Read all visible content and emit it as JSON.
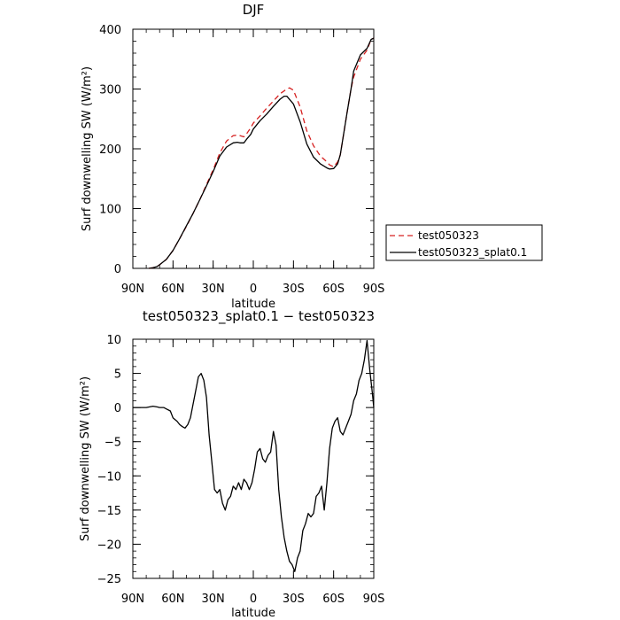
{
  "chart_data": [
    {
      "type": "line",
      "title": "DJF",
      "xlabel": "latitude",
      "ylabel": "Surf downwelling SW (W/m²)",
      "xlim": [
        90,
        -90
      ],
      "ylim": [
        0,
        400
      ],
      "x_ticks": [
        90,
        60,
        30,
        0,
        -30,
        -60,
        -90
      ],
      "x_tick_labels": [
        "90N",
        "60N",
        "30N",
        "0",
        "30S",
        "60S",
        "90S"
      ],
      "y_ticks": [
        0,
        100,
        200,
        300,
        400
      ],
      "y_tick_labels": [
        "0",
        "100",
        "200",
        "300",
        "400"
      ],
      "grid": false,
      "legend_position": "right-middle",
      "series": [
        {
          "name": "test050323",
          "color": "#d62020",
          "dash": "dashed",
          "x": [
            78,
            75,
            72,
            70,
            65,
            60,
            55,
            50,
            45,
            40,
            35,
            30,
            25,
            20,
            15,
            12,
            10,
            7,
            5,
            2,
            0,
            -5,
            -10,
            -15,
            -20,
            -25,
            -27,
            -30,
            -35,
            -40,
            -45,
            -50,
            -55,
            -57,
            -60,
            -63,
            -65,
            -70,
            -73,
            -75,
            -80,
            -85,
            -88,
            -90
          ],
          "y": [
            0,
            1,
            3,
            6,
            15,
            30,
            50,
            70,
            92,
            115,
            140,
            165,
            193,
            213,
            222,
            223,
            222,
            220,
            225,
            235,
            243,
            255,
            268,
            280,
            292,
            300,
            302,
            298,
            270,
            230,
            205,
            188,
            178,
            173,
            170,
            178,
            190,
            260,
            300,
            320,
            350,
            365,
            383,
            385
          ]
        },
        {
          "name": "test050323_splat0.1",
          "color": "#000000",
          "dash": "solid",
          "x": [
            78,
            75,
            72,
            70,
            65,
            60,
            55,
            50,
            45,
            40,
            35,
            30,
            25,
            20,
            15,
            12,
            10,
            7,
            5,
            2,
            0,
            -5,
            -10,
            -15,
            -20,
            -23,
            -25,
            -30,
            -35,
            -40,
            -45,
            -50,
            -55,
            -57,
            -60,
            -63,
            -65,
            -70,
            -73,
            -75,
            -80,
            -85,
            -88,
            -90
          ],
          "y": [
            0,
            1,
            3,
            6,
            15,
            30,
            50,
            71,
            92,
            115,
            138,
            162,
            188,
            203,
            210,
            211,
            210,
            210,
            216,
            224,
            233,
            247,
            258,
            271,
            283,
            288,
            288,
            275,
            245,
            208,
            186,
            175,
            168,
            166,
            167,
            175,
            190,
            260,
            300,
            330,
            357,
            368,
            383,
            385
          ]
        }
      ]
    },
    {
      "type": "line",
      "title": "test050323_splat0.1 − test050323",
      "xlabel": "latitude",
      "ylabel": "Surf downwelling SW (W/m²)",
      "xlim": [
        90,
        -90
      ],
      "ylim": [
        -25,
        10
      ],
      "x_ticks": [
        90,
        60,
        30,
        0,
        -30,
        -60,
        -90
      ],
      "x_tick_labels": [
        "90N",
        "60N",
        "30N",
        "0",
        "30S",
        "60S",
        "90S"
      ],
      "y_ticks": [
        -25,
        -20,
        -15,
        -10,
        -5,
        0,
        5,
        10
      ],
      "y_tick_labels": [
        "−25",
        "−20",
        "−15",
        "−10",
        "−5",
        "0",
        "5",
        "10"
      ],
      "grid": false,
      "series": [
        {
          "color": "#000000",
          "dash": "solid",
          "x": [
            90,
            80,
            75,
            72,
            70,
            67,
            65,
            62,
            60,
            57,
            55,
            53,
            51,
            49,
            47,
            45,
            43,
            41,
            39,
            37,
            35,
            33,
            31,
            29,
            27,
            25,
            23,
            21,
            19,
            17,
            15,
            13,
            11,
            9,
            7,
            5,
            3,
            1,
            -1,
            -3,
            -5,
            -7,
            -9,
            -11,
            -13,
            -15,
            -17,
            -19,
            -21,
            -23,
            -25,
            -27,
            -29,
            -31,
            -33,
            -35,
            -37,
            -39,
            -41,
            -43,
            -45,
            -47,
            -49,
            -51,
            -53,
            -55,
            -57,
            -59,
            -61,
            -63,
            -65,
            -67,
            -69,
            -71,
            -73,
            -75,
            -77,
            -79,
            -81,
            -83,
            -85,
            -87,
            -89,
            -90
          ],
          "y": [
            0,
            0,
            0.2,
            0.1,
            0,
            0,
            -0.2,
            -0.5,
            -1.5,
            -2,
            -2.5,
            -2.8,
            -3,
            -2.5,
            -1.5,
            0.5,
            2.5,
            4.5,
            5,
            4,
            1.5,
            -4,
            -8,
            -12,
            -12.5,
            -12,
            -14,
            -15,
            -13.5,
            -13,
            -11.5,
            -12,
            -11,
            -12,
            -10.5,
            -11,
            -12,
            -11,
            -9,
            -6.5,
            -6,
            -7.5,
            -8,
            -7,
            -6.5,
            -3.5,
            -5.5,
            -12,
            -16,
            -19,
            -21,
            -22.5,
            -23,
            -24,
            -22,
            -21,
            -18,
            -17,
            -15.5,
            -16,
            -15.5,
            -13,
            -12.5,
            -11.5,
            -15,
            -11,
            -6,
            -3,
            -2,
            -1.5,
            -3.5,
            -4,
            -3,
            -2,
            -1,
            1,
            2,
            4,
            5,
            7,
            9.8,
            5.5,
            2,
            0
          ]
        }
      ]
    }
  ]
}
